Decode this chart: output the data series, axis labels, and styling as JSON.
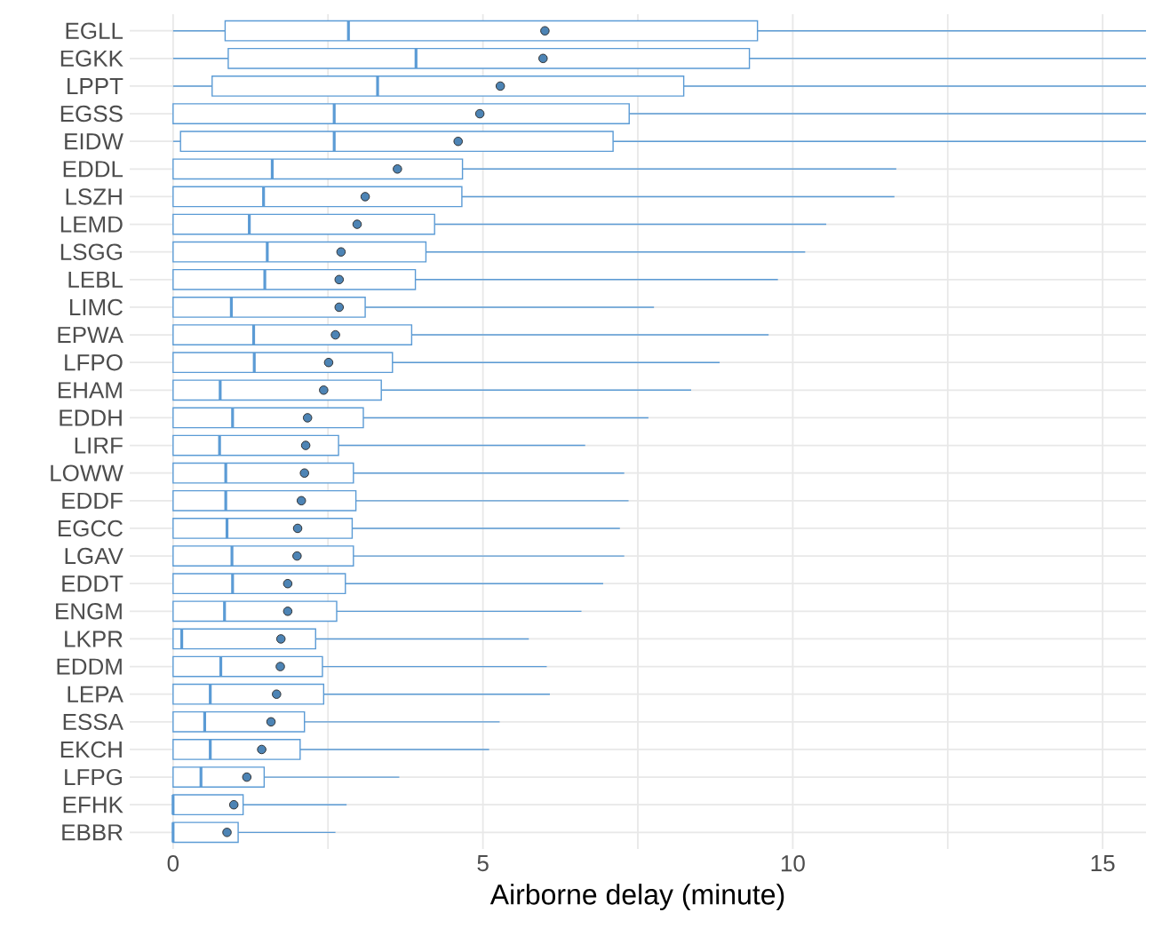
{
  "chart_data": {
    "type": "box",
    "xlabel": "Airborne delay (minute)",
    "orientation": "horizontal",
    "grid": true,
    "color": "#5b9bd5",
    "categories": [
      "EGLL",
      "EGKK",
      "LPPT",
      "EGSS",
      "EIDW",
      "EDDL",
      "LSZH",
      "LEMD",
      "LSGG",
      "LEBL",
      "LIMC",
      "EPWA",
      "LFPO",
      "EHAM",
      "EDDH",
      "LIRF",
      "LOWW",
      "EDDF",
      "EGCC",
      "LGAV",
      "EDDT",
      "ENGM",
      "LKPR",
      "EDDM",
      "LEPA",
      "ESSA",
      "EKCH",
      "LFPG",
      "EFHK",
      "EBBR"
    ],
    "xlim": [
      -0.7,
      15.7
    ],
    "xticks": [
      0,
      {
        "value": 2.5,
        "label": null
      },
      5,
      {
        "value": 7.5,
        "label": null
      },
      10,
      {
        "value": 12.5,
        "label": null
      },
      15
    ],
    "boxes": [
      {
        "low": 0,
        "q1": 0.84,
        "median": 2.83,
        "q3": 9.43,
        "high": 15.7,
        "mean": 6.0
      },
      {
        "low": 0,
        "q1": 0.89,
        "median": 3.92,
        "q3": 9.3,
        "high": 15.7,
        "mean": 5.97
      },
      {
        "low": 0,
        "q1": 0.63,
        "median": 3.3,
        "q3": 8.24,
        "high": 15.7,
        "mean": 5.28
      },
      {
        "low": 0,
        "q1": 0,
        "median": 2.6,
        "q3": 7.36,
        "high": 15.7,
        "mean": 4.95
      },
      {
        "low": 0,
        "q1": 0.12,
        "median": 2.6,
        "q3": 7.1,
        "high": 15.7,
        "mean": 4.6
      },
      {
        "low": 0,
        "q1": 0,
        "median": 1.6,
        "q3": 4.67,
        "high": 11.67,
        "mean": 3.62
      },
      {
        "low": 0,
        "q1": 0,
        "median": 1.46,
        "q3": 4.66,
        "high": 11.64,
        "mean": 3.1
      },
      {
        "low": 0,
        "q1": 0,
        "median": 1.23,
        "q3": 4.22,
        "high": 10.54,
        "mean": 2.97
      },
      {
        "low": 0,
        "q1": 0,
        "median": 1.52,
        "q3": 4.08,
        "high": 10.2,
        "mean": 2.71
      },
      {
        "low": 0,
        "q1": 0,
        "median": 1.48,
        "q3": 3.91,
        "high": 9.76,
        "mean": 2.68
      },
      {
        "low": 0,
        "q1": 0,
        "median": 0.94,
        "q3": 3.1,
        "high": 7.76,
        "mean": 2.68
      },
      {
        "low": 0,
        "q1": 0,
        "median": 1.3,
        "q3": 3.85,
        "high": 9.61,
        "mean": 2.62
      },
      {
        "low": 0,
        "q1": 0,
        "median": 1.31,
        "q3": 3.54,
        "high": 8.82,
        "mean": 2.51
      },
      {
        "low": 0,
        "q1": 0,
        "median": 0.76,
        "q3": 3.36,
        "high": 8.36,
        "mean": 2.43
      },
      {
        "low": 0,
        "q1": 0,
        "median": 0.96,
        "q3": 3.07,
        "high": 7.67,
        "mean": 2.17
      },
      {
        "low": 0,
        "q1": 0,
        "median": 0.75,
        "q3": 2.67,
        "high": 6.65,
        "mean": 2.14
      },
      {
        "low": 0,
        "q1": 0,
        "median": 0.85,
        "q3": 2.91,
        "high": 7.28,
        "mean": 2.12
      },
      {
        "low": 0,
        "q1": 0,
        "median": 0.85,
        "q3": 2.95,
        "high": 7.35,
        "mean": 2.07
      },
      {
        "low": 0,
        "q1": 0,
        "median": 0.87,
        "q3": 2.89,
        "high": 7.21,
        "mean": 2.01
      },
      {
        "low": 0,
        "q1": 0,
        "median": 0.95,
        "q3": 2.91,
        "high": 7.28,
        "mean": 2.0
      },
      {
        "low": 0,
        "q1": 0,
        "median": 0.96,
        "q3": 2.78,
        "high": 6.94,
        "mean": 1.85
      },
      {
        "low": 0,
        "q1": 0,
        "median": 0.83,
        "q3": 2.64,
        "high": 6.59,
        "mean": 1.85
      },
      {
        "low": 0,
        "q1": 0,
        "median": 0.14,
        "q3": 2.3,
        "high": 5.74,
        "mean": 1.74
      },
      {
        "low": 0,
        "q1": 0,
        "median": 0.77,
        "q3": 2.41,
        "high": 6.03,
        "mean": 1.73
      },
      {
        "low": 0,
        "q1": 0,
        "median": 0.6,
        "q3": 2.43,
        "high": 6.08,
        "mean": 1.67
      },
      {
        "low": 0,
        "q1": 0,
        "median": 0.51,
        "q3": 2.12,
        "high": 5.27,
        "mean": 1.58
      },
      {
        "low": 0,
        "q1": 0,
        "median": 0.6,
        "q3": 2.05,
        "high": 5.1,
        "mean": 1.43
      },
      {
        "low": 0,
        "q1": 0,
        "median": 0.45,
        "q3": 1.47,
        "high": 3.65,
        "mean": 1.19
      },
      {
        "low": 0,
        "q1": 0,
        "median": 0,
        "q3": 1.13,
        "high": 2.8,
        "mean": 0.98
      },
      {
        "low": 0,
        "q1": 0,
        "median": 0,
        "q3": 1.05,
        "high": 2.62,
        "mean": 0.87
      }
    ]
  }
}
